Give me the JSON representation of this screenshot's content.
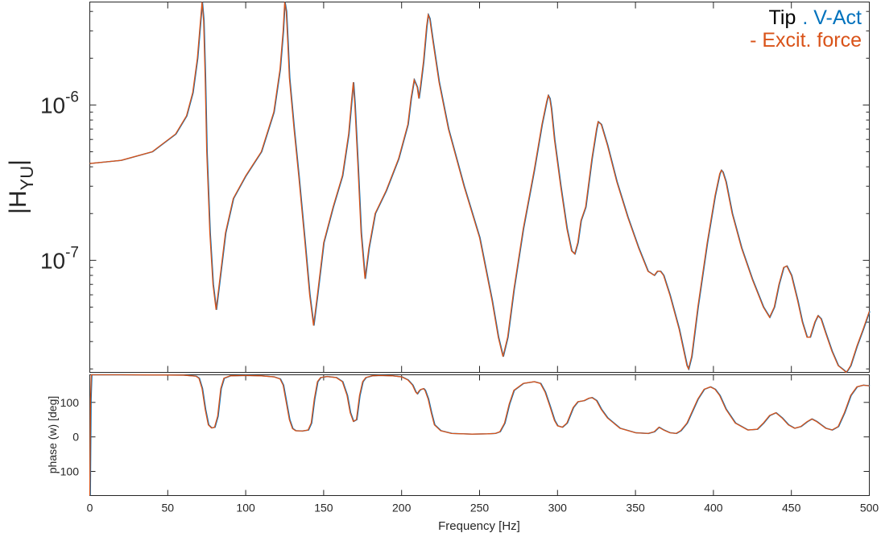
{
  "chart_data": [
    {
      "type": "line",
      "panel": "magnitude",
      "ylabel_main": "H",
      "ylabel_sub": "YU",
      "yscale": "log",
      "xlim": [
        0,
        500
      ],
      "ylim": [
        1.9e-08,
        4.6e-06
      ],
      "ytick_values": [
        1e-07,
        1e-06
      ],
      "ytick_labels": [
        {
          "base": "10",
          "exp": "-7"
        },
        {
          "base": "10",
          "exp": "-6"
        }
      ],
      "legend_placement": "top-right",
      "legend": {
        "line1_black": "Tip",
        "line1_blue": ". V-Act",
        "line2_orange": "- Excit. force"
      },
      "colors": {
        "tip": "#000000",
        "vact": "#0072bd",
        "force": "#d95319"
      },
      "grid": false,
      "series": [
        {
          "name": "Excit. force",
          "x": [
            0,
            20,
            40,
            55,
            62,
            66,
            69,
            71,
            72,
            73,
            74,
            75,
            77,
            79,
            81,
            83,
            87,
            92,
            100,
            110,
            118,
            122,
            124,
            125,
            126,
            127,
            128,
            131,
            134,
            138,
            141,
            143.5,
            146,
            150,
            156,
            162,
            166,
            168,
            169,
            170,
            172,
            174,
            176.5,
            179,
            183,
            190,
            198,
            204,
            206,
            208,
            210,
            211,
            212,
            214,
            216,
            217,
            218,
            220,
            224,
            230,
            240,
            250,
            258,
            262,
            265,
            268,
            272,
            278,
            285,
            290,
            293,
            294,
            295,
            296,
            298,
            302,
            306,
            309,
            311,
            313,
            315,
            318,
            322,
            325,
            326,
            328,
            332,
            338,
            345,
            352,
            358,
            362,
            364,
            366,
            368,
            372,
            378,
            383,
            384,
            386,
            390,
            396,
            401,
            404,
            405,
            406,
            408,
            412,
            418,
            425,
            432,
            436,
            439,
            442,
            445,
            447,
            450,
            454,
            457,
            460,
            462,
            465,
            467,
            469,
            472,
            476,
            480,
            484,
            485,
            486,
            488,
            492,
            496,
            500
          ],
          "values": [
            4.2e-07,
            4.4e-07,
            5e-07,
            6.5e-07,
            8.5e-07,
            1.2e-06,
            2e-06,
            3.5e-06,
            4.6e-06,
            3.5e-06,
            1.5e-06,
            5e-07,
            1.5e-07,
            7e-08,
            4.8e-08,
            7e-08,
            1.5e-07,
            2.5e-07,
            3.5e-07,
            5e-07,
            9e-07,
            1.7e-06,
            3e-06,
            4.6e-06,
            4e-06,
            2.5e-06,
            1.5e-06,
            7e-07,
            3.5e-07,
            1.3e-07,
            6e-08,
            3.8e-08,
            6e-08,
            1.3e-07,
            2.2e-07,
            3.5e-07,
            6.5e-07,
            1.1e-06,
            1.4e-06,
            1e-06,
            4e-07,
            1.5e-07,
            7.6e-08,
            1.2e-07,
            2e-07,
            2.8e-07,
            4.5e-07,
            7.5e-07,
            1.1e-06,
            1.45e-06,
            1.3e-06,
            1.1e-06,
            1.3e-06,
            1.9e-06,
            3.2e-06,
            3.8e-06,
            3.6e-06,
            2.6e-06,
            1.4e-06,
            7e-07,
            3e-07,
            1.4e-07,
            5.5e-08,
            3.2e-08,
            2.4e-08,
            3.2e-08,
            6.5e-08,
            1.6e-07,
            3.8e-07,
            7.5e-07,
            1.05e-06,
            1.15e-06,
            1.1e-06,
            9.5e-07,
            6e-07,
            3e-07,
            1.6e-07,
            1.15e-07,
            1.1e-07,
            1.3e-07,
            1.8e-07,
            2.2e-07,
            4.5e-07,
            7e-07,
            7.8e-07,
            7.5e-07,
            5.5e-07,
            3.2e-07,
            1.9e-07,
            1.2e-07,
            8.5e-08,
            8e-08,
            8.5e-08,
            8.5e-08,
            8e-08,
            6e-08,
            3.6e-08,
            2.1e-08,
            2e-08,
            2.4e-08,
            5e-08,
            1.3e-07,
            2.6e-07,
            3.6e-07,
            3.8e-07,
            3.7e-07,
            3.2e-07,
            2e-07,
            1.2e-07,
            7.5e-08,
            5e-08,
            4.3e-08,
            5e-08,
            7e-08,
            9e-08,
            9.2e-08,
            8e-08,
            5.5e-08,
            4e-08,
            3.2e-08,
            3.2e-08,
            4e-08,
            4.4e-08,
            4.2e-08,
            3.4e-08,
            2.6e-08,
            2.1e-08,
            1.95e-08,
            1.9e-08,
            1.95e-08,
            2.1e-08,
            2.8e-08,
            3.6e-08,
            4.7e-08
          ]
        }
      ]
    },
    {
      "type": "line",
      "panel": "phase",
      "xlabel": "Frequency [Hz]",
      "ylabel": "phase (w) [deg]",
      "xlim": [
        0,
        500
      ],
      "ylim": [
        -170,
        180
      ],
      "xticks": [
        0,
        50,
        100,
        150,
        200,
        250,
        300,
        350,
        400,
        450,
        500
      ],
      "xtick_labels": [
        "0",
        "50",
        "100",
        "150",
        "200",
        "250",
        "300",
        "350",
        "400",
        "450",
        "500"
      ],
      "yticks": [
        100,
        0,
        -100
      ],
      "ytick_labels": [
        "100",
        "0",
        "-100"
      ],
      "grid": false,
      "series": [
        {
          "name": "Excit. force",
          "x": [
            0,
            0.5,
            1,
            20,
            60,
            68,
            70,
            72,
            74,
            76,
            78,
            80,
            82,
            84,
            86,
            90,
            100,
            110,
            118,
            122,
            124,
            126,
            128,
            130,
            132,
            136,
            140,
            142,
            144,
            146,
            148,
            152,
            158,
            162,
            165,
            167,
            169,
            171,
            173,
            175,
            177,
            181,
            186,
            194,
            200,
            204,
            207,
            209,
            210,
            211,
            212,
            214,
            215,
            217,
            219,
            221,
            225,
            232,
            245,
            255,
            260,
            263,
            266,
            269,
            272,
            278,
            285,
            289,
            292,
            295,
            298,
            300,
            303,
            306,
            310,
            313,
            317,
            320,
            322,
            325,
            328,
            332,
            340,
            350,
            358,
            362,
            365,
            368,
            372,
            376,
            379,
            383,
            386,
            390,
            394,
            398,
            401,
            404,
            408,
            414,
            422,
            428,
            432,
            436,
            440,
            444,
            448,
            452,
            456,
            460,
            463,
            466,
            469,
            472,
            476,
            480,
            484,
            488,
            492,
            496,
            500
          ],
          "values": [
            -170,
            110,
            180,
            180,
            179,
            176,
            170,
            140,
            80,
            35,
            26,
            28,
            60,
            140,
            170,
            177,
            178,
            177,
            174,
            168,
            150,
            100,
            50,
            24,
            18,
            17,
            20,
            40,
            110,
            160,
            172,
            175,
            172,
            160,
            120,
            70,
            45,
            50,
            120,
            160,
            172,
            177,
            178,
            177,
            174,
            165,
            150,
            130,
            125,
            132,
            137,
            140,
            135,
            110,
            70,
            35,
            18,
            10,
            8,
            9,
            10,
            15,
            40,
            95,
            135,
            155,
            160,
            155,
            130,
            90,
            48,
            32,
            28,
            40,
            85,
            102,
            105,
            112,
            114,
            105,
            80,
            55,
            25,
            12,
            10,
            15,
            28,
            20,
            12,
            10,
            18,
            40,
            70,
            110,
            138,
            145,
            138,
            120,
            80,
            40,
            20,
            22,
            40,
            62,
            70,
            55,
            35,
            25,
            30,
            44,
            52,
            45,
            35,
            25,
            20,
            30,
            70,
            120,
            145,
            150,
            148
          ]
        }
      ]
    }
  ]
}
